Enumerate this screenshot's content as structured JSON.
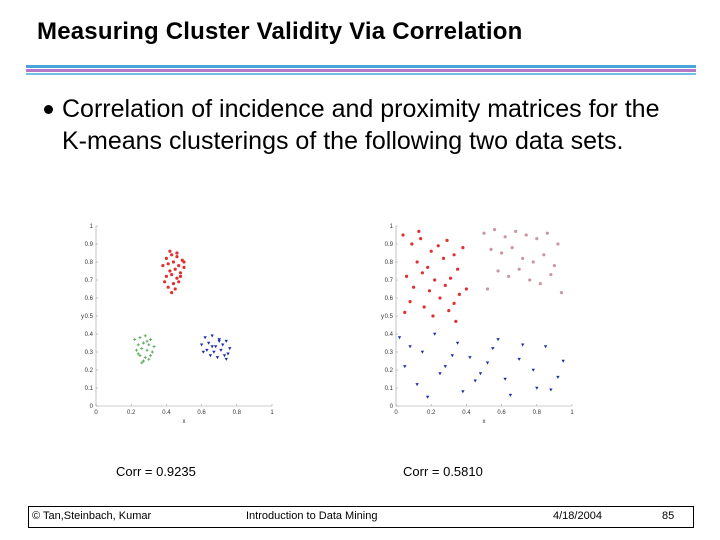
{
  "slide": {
    "title": "Measuring Cluster Validity Via Correlation",
    "bullet": "Correlation of incidence and proximity matrices for the K-means clusterings of the following two data sets."
  },
  "chart_data": [
    {
      "type": "scatter",
      "title": "",
      "xlabel": "x",
      "ylabel": "y",
      "xlim": [
        0,
        1
      ],
      "ylim": [
        0,
        1
      ],
      "xticks": [
        "0",
        "0.2",
        "0.4",
        "0.6",
        "0.8",
        "1"
      ],
      "yticks": [
        "0",
        "0.1",
        "0.2",
        "0.3",
        "0.4",
        "0.5",
        "0.6",
        "0.7",
        "0.8",
        "0.9",
        "1"
      ],
      "caption": "Corr = 0.9235",
      "series": [
        {
          "name": "cluster-red",
          "color": "#e03030",
          "marker": "dot",
          "x": [
            0.4,
            0.43,
            0.46,
            0.49,
            0.38,
            0.41,
            0.44,
            0.47,
            0.5,
            0.42,
            0.45,
            0.48,
            0.4,
            0.43,
            0.46,
            0.39,
            0.44,
            0.47,
            0.41,
            0.45,
            0.43,
            0.48,
            0.42,
            0.46,
            0.5
          ],
          "y": [
            0.82,
            0.84,
            0.83,
            0.81,
            0.78,
            0.79,
            0.8,
            0.78,
            0.77,
            0.75,
            0.76,
            0.74,
            0.72,
            0.73,
            0.71,
            0.69,
            0.68,
            0.69,
            0.66,
            0.65,
            0.63,
            0.72,
            0.86,
            0.85,
            0.8
          ]
        },
        {
          "name": "cluster-green",
          "color": "#58a858",
          "marker": "plus",
          "x": [
            0.22,
            0.25,
            0.28,
            0.31,
            0.24,
            0.27,
            0.3,
            0.33,
            0.23,
            0.26,
            0.29,
            0.32,
            0.25,
            0.28,
            0.31,
            0.27,
            0.3,
            0.24,
            0.29,
            0.26
          ],
          "y": [
            0.37,
            0.38,
            0.39,
            0.37,
            0.34,
            0.35,
            0.34,
            0.33,
            0.31,
            0.32,
            0.31,
            0.3,
            0.28,
            0.27,
            0.28,
            0.25,
            0.26,
            0.29,
            0.36,
            0.24
          ]
        },
        {
          "name": "cluster-blue",
          "color": "#1e2ea8",
          "marker": "triangle",
          "x": [
            0.62,
            0.66,
            0.7,
            0.74,
            0.6,
            0.64,
            0.68,
            0.72,
            0.76,
            0.63,
            0.67,
            0.71,
            0.75,
            0.65,
            0.69,
            0.73,
            0.61,
            0.7,
            0.66,
            0.74
          ],
          "y": [
            0.38,
            0.39,
            0.37,
            0.36,
            0.34,
            0.35,
            0.33,
            0.34,
            0.32,
            0.31,
            0.3,
            0.31,
            0.29,
            0.28,
            0.27,
            0.28,
            0.3,
            0.36,
            0.33,
            0.26
          ]
        }
      ]
    },
    {
      "type": "scatter",
      "title": "",
      "xlabel": "x",
      "ylabel": "y",
      "xlim": [
        0,
        1
      ],
      "ylim": [
        0,
        1
      ],
      "xticks": [
        "0",
        "0.2",
        "0.4",
        "0.6",
        "0.8",
        "1"
      ],
      "yticks": [
        "0",
        "0.1",
        "0.2",
        "0.3",
        "0.4",
        "0.5",
        "0.6",
        "0.7",
        "0.8",
        "0.9",
        "1"
      ],
      "caption": "Corr = 0.5810",
      "series": [
        {
          "name": "cluster-red",
          "color": "#e03030",
          "marker": "dot",
          "x": [
            0.04,
            0.09,
            0.14,
            0.2,
            0.24,
            0.29,
            0.33,
            0.38,
            0.12,
            0.18,
            0.27,
            0.35,
            0.06,
            0.15,
            0.22,
            0.31,
            0.1,
            0.19,
            0.28,
            0.36,
            0.08,
            0.25,
            0.33,
            0.16,
            0.3,
            0.21,
            0.05,
            0.4,
            0.13,
            0.34
          ],
          "y": [
            0.95,
            0.9,
            0.93,
            0.86,
            0.89,
            0.92,
            0.84,
            0.88,
            0.8,
            0.77,
            0.82,
            0.76,
            0.72,
            0.74,
            0.7,
            0.71,
            0.66,
            0.64,
            0.67,
            0.62,
            0.58,
            0.6,
            0.57,
            0.55,
            0.53,
            0.5,
            0.52,
            0.65,
            0.97,
            0.47
          ]
        },
        {
          "name": "cluster-pink",
          "color": "#c89aa0",
          "marker": "dot",
          "x": [
            0.5,
            0.56,
            0.62,
            0.68,
            0.74,
            0.8,
            0.86,
            0.92,
            0.54,
            0.6,
            0.66,
            0.72,
            0.78,
            0.84,
            0.9,
            0.58,
            0.64,
            0.7,
            0.76,
            0.82,
            0.52,
            0.88,
            0.94
          ],
          "y": [
            0.96,
            0.98,
            0.94,
            0.97,
            0.95,
            0.93,
            0.96,
            0.9,
            0.87,
            0.85,
            0.88,
            0.82,
            0.8,
            0.84,
            0.78,
            0.75,
            0.72,
            0.76,
            0.7,
            0.68,
            0.65,
            0.73,
            0.63
          ]
        },
        {
          "name": "cluster-blue",
          "color": "#1e2ea8",
          "marker": "triangle",
          "x": [
            0.02,
            0.08,
            0.15,
            0.22,
            0.28,
            0.35,
            0.42,
            0.48,
            0.55,
            0.62,
            0.7,
            0.78,
            0.85,
            0.92,
            0.12,
            0.25,
            0.38,
            0.52,
            0.65,
            0.8,
            0.05,
            0.18,
            0.45,
            0.58,
            0.88,
            0.32,
            0.72,
            0.95
          ],
          "y": [
            0.38,
            0.33,
            0.3,
            0.4,
            0.22,
            0.35,
            0.27,
            0.18,
            0.32,
            0.15,
            0.26,
            0.2,
            0.33,
            0.16,
            0.12,
            0.18,
            0.08,
            0.24,
            0.06,
            0.1,
            0.22,
            0.05,
            0.14,
            0.37,
            0.09,
            0.28,
            0.34,
            0.25
          ]
        }
      ]
    }
  ],
  "footer": {
    "copyright": "© Tan,Steinbach, Kumar",
    "course": "Introduction to Data Mining",
    "date": "4/18/2004",
    "page": "85"
  }
}
